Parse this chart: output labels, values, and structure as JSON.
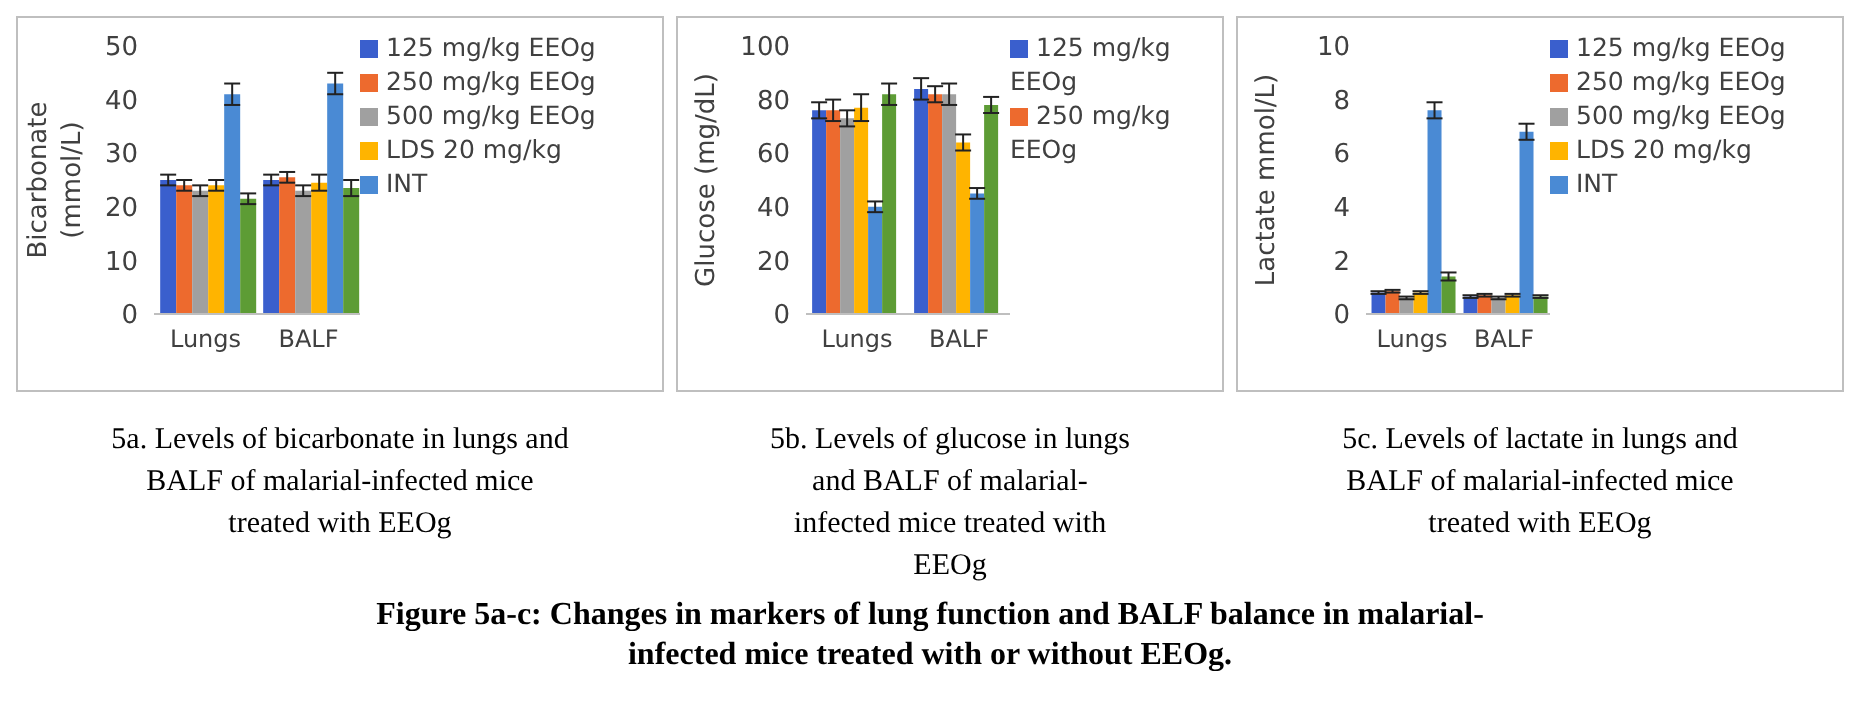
{
  "chart_data": [
    {
      "type": "bar",
      "title": "5a. Levels of bicarbonate in lungs and BALF of malarial-infected mice treated with EEOg",
      "ylabel": "Bicarbonate (mmol/L)",
      "categories": [
        "Lungs",
        "BALF"
      ],
      "ylim": [
        0,
        50
      ],
      "yticks": [
        0,
        10,
        20,
        30,
        40,
        50
      ],
      "grid": false,
      "legend": "right",
      "annotations": [
        "Figure 5a-c: Changes in markers of lung function and BALF balance in malarial-infected mice treated with or without EEOg."
      ],
      "series": [
        {
          "name": "125 mg/kg EEOg",
          "color": "#3a5fcd",
          "values": [
            25,
            25
          ],
          "errors": [
            1,
            1
          ]
        },
        {
          "name": "250 mg/kg EEOg",
          "color": "#ed6a2e",
          "values": [
            24,
            25.5
          ],
          "errors": [
            1,
            1
          ]
        },
        {
          "name": "500 mg/kg EEOg",
          "color": "#a0a0a0",
          "values": [
            23,
            23
          ],
          "errors": [
            1,
            1
          ]
        },
        {
          "name": "LDS 20 mg/kg",
          "color": "#ffb400",
          "values": [
            24,
            24.5
          ],
          "errors": [
            1,
            1.5
          ]
        },
        {
          "name": "INT",
          "color": "#4a8ad4",
          "values": [
            41,
            43
          ],
          "errors": [
            2,
            2
          ]
        },
        {
          "color": "#5d9c35",
          "values": [
            21.5,
            23.5
          ],
          "errors": [
            1,
            1.5
          ]
        }
      ]
    },
    {
      "type": "bar",
      "title": "5b. Levels of glucose in lungs and BALF of malarial-infected mice treated with EEOg",
      "ylabel": "Glucose (mg/dL)",
      "categories": [
        "Lungs",
        "BALF"
      ],
      "ylim": [
        0,
        100
      ],
      "yticks": [
        0,
        20,
        40,
        60,
        80,
        100
      ],
      "grid": false,
      "legend": "right",
      "series": [
        {
          "name": "125 mg/kg EEOg",
          "color": "#3a5fcd",
          "values": [
            76,
            84
          ],
          "errors": [
            3,
            4
          ]
        },
        {
          "name": "250 mg/kg EEOg",
          "color": "#ed6a2e",
          "values": [
            76,
            82
          ],
          "errors": [
            4,
            3
          ]
        },
        {
          "color": "#a0a0a0",
          "values": [
            73,
            82
          ],
          "errors": [
            3,
            4
          ]
        },
        {
          "color": "#ffb400",
          "values": [
            77,
            64
          ],
          "errors": [
            5,
            3
          ]
        },
        {
          "color": "#4a8ad4",
          "values": [
            40,
            45
          ],
          "errors": [
            2,
            2
          ]
        },
        {
          "color": "#5d9c35",
          "values": [
            82,
            78
          ],
          "errors": [
            4,
            3
          ]
        }
      ]
    },
    {
      "type": "bar",
      "title": "5c. Levels of lactate in lungs and BALF of malarial-infected mice treated with EEOg",
      "ylabel": "Lactate mmol/L)",
      "categories": [
        "Lungs",
        "BALF"
      ],
      "ylim": [
        0,
        10
      ],
      "yticks": [
        0,
        2,
        4,
        6,
        8,
        10
      ],
      "grid": false,
      "legend": "right",
      "series": [
        {
          "name": "125 mg/kg EEOg",
          "color": "#3a5fcd",
          "values": [
            0.8,
            0.65
          ],
          "errors": [
            0.05,
            0.05
          ]
        },
        {
          "name": "250 mg/kg EEOg",
          "color": "#ed6a2e",
          "values": [
            0.85,
            0.7
          ],
          "errors": [
            0.05,
            0.05
          ]
        },
        {
          "name": "500 mg/kg EEOg",
          "color": "#a0a0a0",
          "values": [
            0.6,
            0.6
          ],
          "errors": [
            0.05,
            0.05
          ]
        },
        {
          "name": "LDS 20 mg/kg",
          "color": "#ffb400",
          "values": [
            0.8,
            0.7
          ],
          "errors": [
            0.05,
            0.05
          ]
        },
        {
          "name": "INT",
          "color": "#4a8ad4",
          "values": [
            7.6,
            6.8
          ],
          "errors": [
            0.3,
            0.3
          ]
        },
        {
          "color": "#5d9c35",
          "values": [
            1.4,
            0.65
          ],
          "errors": [
            0.15,
            0.05
          ]
        }
      ]
    }
  ]
}
